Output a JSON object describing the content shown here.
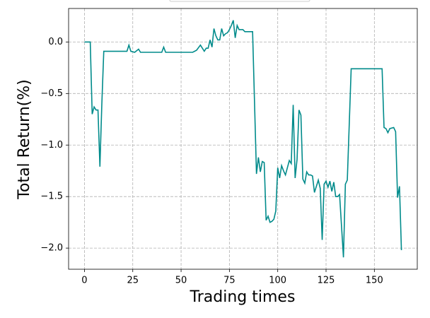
{
  "chart_data": {
    "type": "line",
    "xlabel": "Trading times",
    "ylabel": "Total Return(%)",
    "x": [
      0,
      3,
      4,
      5,
      6,
      7,
      8,
      9,
      10,
      22,
      23,
      24,
      26,
      28,
      29,
      40,
      41,
      42,
      56,
      58,
      60,
      62,
      63,
      64,
      65,
      66,
      67,
      68,
      69,
      70,
      71,
      72,
      73,
      74,
      75,
      76,
      77,
      78,
      79,
      80,
      81,
      82,
      83,
      84,
      85,
      86,
      87,
      89,
      90,
      91,
      92,
      93,
      94,
      95,
      96,
      97,
      98,
      99,
      100,
      101,
      102,
      103,
      104,
      105,
      106,
      107,
      108,
      109,
      110,
      111,
      112,
      113,
      114,
      115,
      116,
      117,
      118,
      119,
      120,
      121,
      122,
      123,
      124,
      125,
      126,
      127,
      128,
      129,
      130,
      131,
      132,
      134,
      135,
      136,
      138,
      154,
      155,
      156,
      157,
      158,
      160,
      161,
      162,
      163,
      164
    ],
    "series": [
      {
        "name": "Total Return",
        "color": "#008b8b",
        "values": [
          0,
          0,
          -0.7,
          -0.63,
          -0.66,
          -0.66,
          -1.21,
          -0.6,
          -0.09,
          -0.09,
          -0.03,
          -0.09,
          -0.1,
          -0.07,
          -0.1,
          -0.1,
          -0.05,
          -0.1,
          -0.1,
          -0.08,
          -0.03,
          -0.09,
          -0.06,
          -0.06,
          0.02,
          -0.05,
          0.13,
          0.06,
          0.02,
          0.02,
          0.13,
          0.06,
          0.08,
          0.09,
          0.12,
          0.16,
          0.21,
          0.04,
          0.16,
          0.12,
          0.12,
          0.12,
          0.1,
          0.1,
          0.1,
          0.1,
          0.1,
          -1.28,
          -1.12,
          -1.26,
          -1.16,
          -1.17,
          -1.73,
          -1.69,
          -1.75,
          -1.74,
          -1.72,
          -1.64,
          -1.22,
          -1.32,
          -1.2,
          -1.25,
          -1.29,
          -1.22,
          -1.15,
          -1.18,
          -0.61,
          -1.32,
          -1.14,
          -0.66,
          -0.71,
          -1.33,
          -1.37,
          -1.26,
          -1.29,
          -1.29,
          -1.3,
          -1.46,
          -1.4,
          -1.34,
          -1.42,
          -1.92,
          -1.38,
          -1.35,
          -1.41,
          -1.35,
          -1.45,
          -1.36,
          -1.5,
          -1.5,
          -1.48,
          -2.09,
          -1.38,
          -1.34,
          -0.26,
          -0.26,
          -0.83,
          -0.84,
          -0.88,
          -0.84,
          -0.83,
          -0.87,
          -1.51,
          -1.4,
          -2.02
        ]
      }
    ],
    "xlim": [
      -8.2,
      172.2
    ],
    "ylim": [
      -2.205,
      0.325
    ],
    "xticks": [
      0,
      25,
      50,
      75,
      100,
      125,
      150
    ],
    "yticks": [
      {
        "value": 0,
        "label": "0.0"
      },
      {
        "value": -0.5,
        "label": "−0.5"
      },
      {
        "value": -1,
        "label": "−1.0"
      },
      {
        "value": -1.5,
        "label": "−1.5"
      },
      {
        "value": -2,
        "label": "−2.0"
      }
    ],
    "grid": true
  }
}
